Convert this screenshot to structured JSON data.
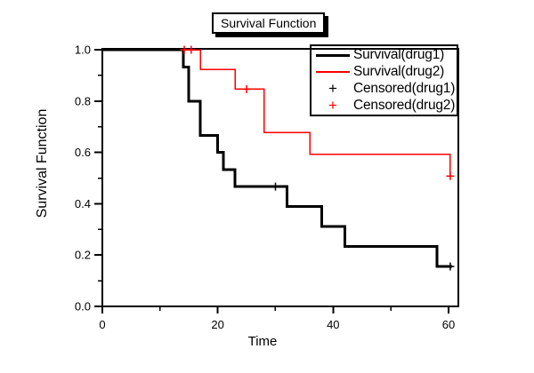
{
  "chart_data": {
    "type": "line",
    "subtype": "kaplan-meier-step-survival",
    "title": "Survival Function",
    "xlabel": "Time",
    "ylabel": "Survival Function",
    "grid": false,
    "legend_position": "top-right-inside",
    "x_axis": {
      "range": [
        0,
        61.7
      ],
      "major_ticks": [
        {
          "v": 0,
          "label": "0"
        },
        {
          "v": 20,
          "label": "20"
        },
        {
          "v": 40,
          "label": "40"
        },
        {
          "v": 60,
          "label": "60"
        }
      ],
      "minor_ticks": [
        10,
        30,
        50
      ]
    },
    "y_axis": {
      "range": [
        0,
        1.0035
      ],
      "major_ticks": [
        {
          "v": 0.0,
          "label": "0.0"
        },
        {
          "v": 0.2,
          "label": "0.2"
        },
        {
          "v": 0.4,
          "label": "0.4"
        },
        {
          "v": 0.6,
          "label": "0.6"
        },
        {
          "v": 0.8,
          "label": "0.8"
        },
        {
          "v": 1.0,
          "label": "1.0"
        }
      ],
      "minor_ticks": [
        0.1,
        0.3,
        0.5,
        0.7,
        0.9
      ]
    },
    "series": [
      {
        "name": "Survival(drug1)",
        "color": "#000000",
        "line_width": 3,
        "start_value": 1.0,
        "end_time": 60.6,
        "steps": [
          [
            14,
            0.9333
          ],
          [
            15,
            0.8
          ],
          [
            17,
            0.6667
          ],
          [
            20,
            0.6
          ],
          [
            21,
            0.5333
          ],
          [
            23,
            0.4667
          ],
          [
            32,
            0.3889
          ],
          [
            38,
            0.3111
          ],
          [
            42,
            0.2333
          ],
          [
            58,
            0.1556
          ]
        ]
      },
      {
        "name": "Survival(drug2)",
        "color": "#ff0000",
        "line_width": 1.5,
        "start_value": 1.0,
        "end_time": 60.3,
        "steps": [
          [
            17,
            0.9231
          ],
          [
            23,
            0.8462
          ],
          [
            28,
            0.6769
          ],
          [
            36,
            0.5923
          ],
          [
            60.3,
            0.5077
          ]
        ]
      }
    ],
    "censored": [
      {
        "name": "Censored(drug1)",
        "color": "#000000",
        "points": [
          [
            30,
            0.4667
          ],
          [
            60.3,
            0.1556
          ]
        ]
      },
      {
        "name": "Censored(drug2)",
        "color": "#ff0000",
        "points": [
          [
            14.2,
            1.0
          ],
          [
            15.4,
            1.0
          ],
          [
            25,
            0.8462
          ],
          [
            60.3,
            0.5077
          ]
        ]
      }
    ]
  },
  "legend": {
    "items": [
      {
        "label": "Survival(drug1)",
        "type": "line",
        "color": "#000000",
        "weight": 3
      },
      {
        "label": "Survival(drug2)",
        "type": "line",
        "color": "#ff0000",
        "weight": 1.5
      },
      {
        "label": "Censored(drug1)",
        "type": "plus",
        "color": "#000000"
      },
      {
        "label": "Censored(drug2)",
        "type": "plus",
        "color": "#ff0000"
      }
    ]
  },
  "icons": {
    "censored_marker": "+"
  },
  "colors": {
    "drug1": "#000000",
    "drug2": "#ff0000",
    "frame": "#000000",
    "background": "#ffffff"
  }
}
